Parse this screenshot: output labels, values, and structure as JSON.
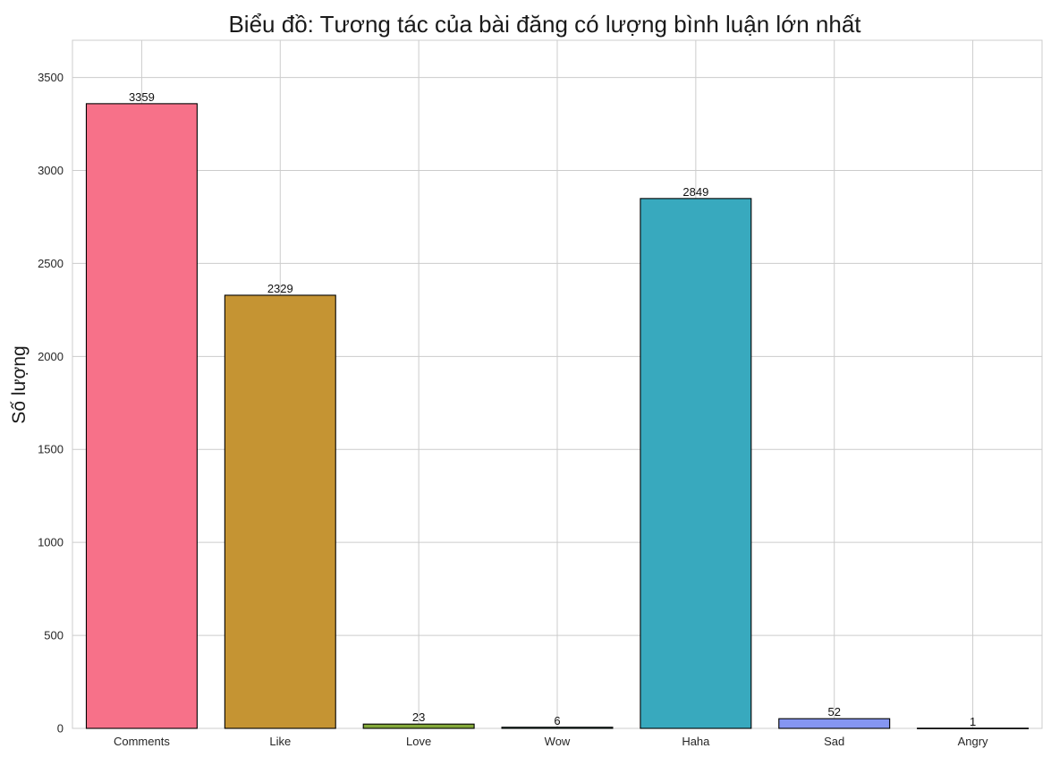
{
  "chart_data": {
    "type": "bar",
    "title": "Biểu đồ: Tương tác của bài đăng có lượng bình luận lớn nhất",
    "xlabel": "",
    "ylabel": "Số lượng",
    "categories": [
      "Comments",
      "Like",
      "Love",
      "Wow",
      "Haha",
      "Sad",
      "Angry"
    ],
    "values": [
      3359,
      2329,
      23,
      6,
      2849,
      52,
      1
    ],
    "colors": [
      "#f77189",
      "#c59433",
      "#83a83a",
      "#39a87a",
      "#38a9be",
      "#8596f2",
      "#ee68d6"
    ],
    "ylim": [
      0,
      3700
    ],
    "yticks": [
      0,
      500,
      1000,
      1500,
      2000,
      2500,
      3000,
      3500
    ],
    "grid": true,
    "legend": "none"
  }
}
